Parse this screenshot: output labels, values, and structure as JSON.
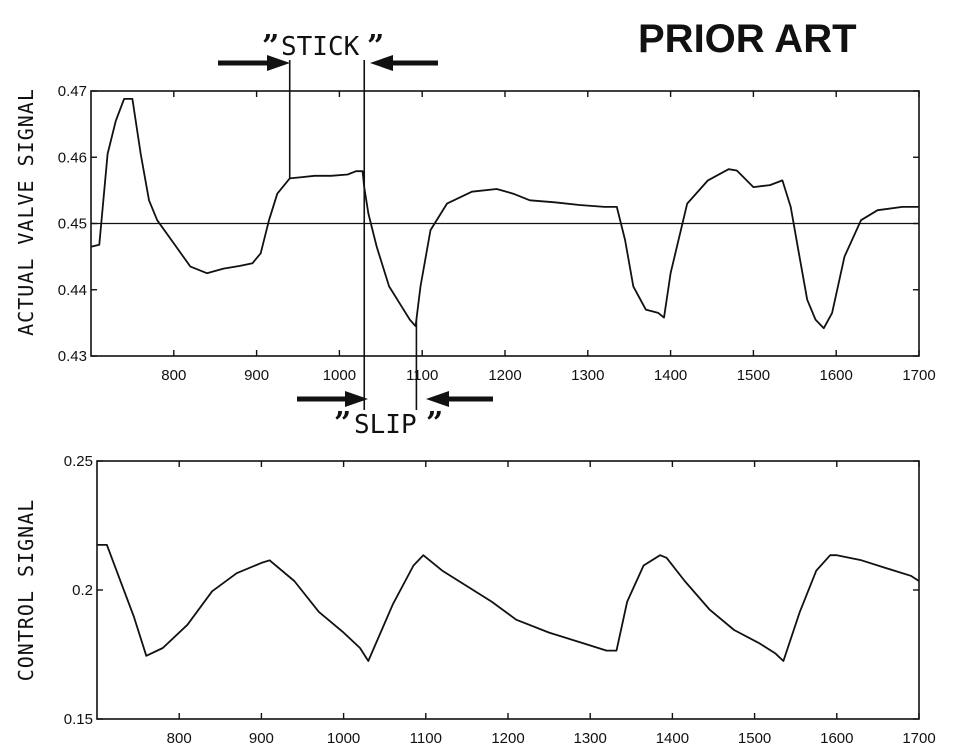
{
  "header_text": "PRIOR ART",
  "annotations": {
    "stick": "STICK",
    "slip": "SLIP",
    "open_quote": "”",
    "close_quote": "”",
    "stick_range": [
      940,
      1030
    ],
    "slip_range": [
      1030,
      1093
    ]
  },
  "chart_data": [
    {
      "type": "line",
      "ylabel": "ACTUAL VALVE SIGNAL",
      "xlim": [
        700,
        1700
      ],
      "ylim": [
        0.43,
        0.47
      ],
      "xticks": [
        800,
        900,
        1000,
        1100,
        1200,
        1300,
        1400,
        1500,
        1600,
        1700
      ],
      "yticks": [
        0.43,
        0.44,
        0.45,
        0.46,
        0.47
      ],
      "ytick_labels": [
        "0.43",
        "0.44",
        "0.45",
        "0.46",
        "0.47"
      ],
      "reference_line": 0.45,
      "series": [
        {
          "x": [
            700,
            710,
            720,
            730,
            740,
            750,
            760,
            770,
            780,
            800,
            820,
            840,
            860,
            880,
            895,
            905,
            915,
            925,
            940,
            955,
            970,
            990,
            1010,
            1020,
            1028,
            1030,
            1035,
            1045,
            1060,
            1075,
            1085,
            1092,
            1098,
            1110,
            1130,
            1160,
            1190,
            1210,
            1230,
            1260,
            1290,
            1320,
            1335,
            1345,
            1355,
            1370,
            1385,
            1392,
            1400,
            1420,
            1445,
            1470,
            1480,
            1500,
            1520,
            1535,
            1545,
            1555,
            1565,
            1575,
            1585,
            1595,
            1610,
            1630,
            1650,
            1680,
            1700
          ],
          "y": [
            0.4465,
            0.4468,
            0.4605,
            0.4655,
            0.4688,
            0.4688,
            0.4605,
            0.4535,
            0.4505,
            0.447,
            0.4435,
            0.4425,
            0.4432,
            0.4436,
            0.444,
            0.4455,
            0.4505,
            0.4545,
            0.4568,
            0.457,
            0.4572,
            0.4572,
            0.4574,
            0.4579,
            0.4579,
            0.4555,
            0.4515,
            0.4465,
            0.4405,
            0.4375,
            0.4355,
            0.4345,
            0.4405,
            0.449,
            0.453,
            0.4548,
            0.4552,
            0.4545,
            0.4535,
            0.4532,
            0.4528,
            0.4525,
            0.4525,
            0.4475,
            0.4405,
            0.437,
            0.4365,
            0.4358,
            0.4425,
            0.453,
            0.4565,
            0.4582,
            0.458,
            0.4555,
            0.4558,
            0.4565,
            0.4525,
            0.4455,
            0.4385,
            0.4355,
            0.4342,
            0.4365,
            0.445,
            0.4505,
            0.452,
            0.4525,
            0.4525
          ]
        }
      ]
    },
    {
      "type": "line",
      "ylabel": "CONTROL SIGNAL",
      "xlim": [
        700,
        1700
      ],
      "ylim": [
        0.15,
        0.25
      ],
      "xticks": [
        800,
        900,
        1000,
        1100,
        1200,
        1300,
        1400,
        1500,
        1600,
        1700
      ],
      "yticks": [
        0.15,
        0.2,
        0.25
      ],
      "ytick_labels": [
        "0.15",
        "0.2",
        "0.25"
      ],
      "series": [
        {
          "x": [
            700,
            712,
            725,
            745,
            760,
            780,
            810,
            840,
            870,
            900,
            910,
            940,
            970,
            1000,
            1020,
            1030,
            1060,
            1085,
            1097,
            1120,
            1150,
            1180,
            1210,
            1250,
            1290,
            1320,
            1332,
            1345,
            1365,
            1385,
            1393,
            1415,
            1445,
            1475,
            1505,
            1525,
            1535,
            1555,
            1575,
            1592,
            1600,
            1630,
            1660,
            1690,
            1700
          ],
          "y": [
            0.2175,
            0.2175,
            0.2065,
            0.1895,
            0.1745,
            0.1775,
            0.1865,
            0.1995,
            0.2065,
            0.2105,
            0.2115,
            0.2035,
            0.1915,
            0.1835,
            0.1775,
            0.1725,
            0.1945,
            0.2095,
            0.2135,
            0.2075,
            0.2015,
            0.1955,
            0.1885,
            0.1835,
            0.1795,
            0.1765,
            0.1765,
            0.1955,
            0.2095,
            0.2135,
            0.2125,
            0.2035,
            0.1925,
            0.1845,
            0.1795,
            0.1755,
            0.1725,
            0.1915,
            0.2075,
            0.2135,
            0.2135,
            0.2115,
            0.2085,
            0.2055,
            0.2035
          ]
        }
      ]
    }
  ]
}
